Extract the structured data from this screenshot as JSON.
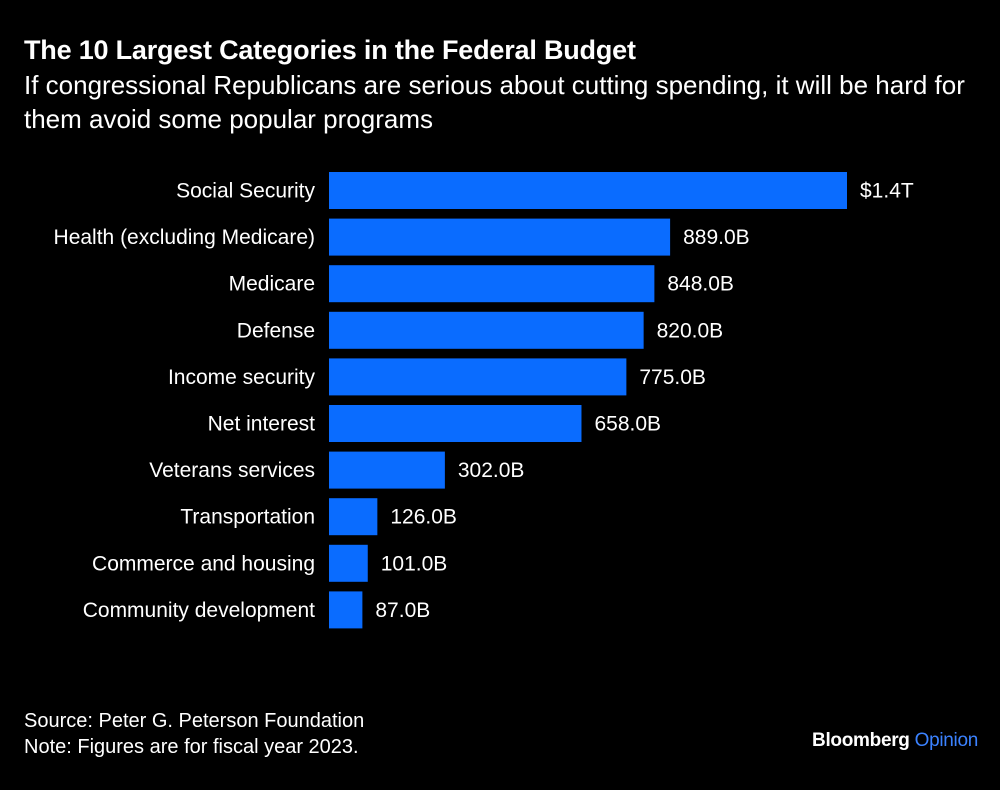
{
  "header": {
    "title": "The 10 Largest Categories in the Federal Budget",
    "subtitle": "If congressional Republicans are serious about cutting spending, it will be hard for them avoid some popular programs"
  },
  "chart_data": {
    "type": "bar",
    "orientation": "horizontal",
    "title": "The 10 Largest Categories in the Federal Budget",
    "xlabel": "",
    "ylabel": "",
    "units": "USD billions",
    "categories": [
      "Social Security",
      "Health (excluding Medicare)",
      "Medicare",
      "Defense",
      "Income security",
      "Net interest",
      "Veterans services",
      "Transportation",
      "Commerce and housing",
      "Community development"
    ],
    "values": [
      1350,
      889,
      848,
      820,
      775,
      658,
      302,
      126,
      101,
      87
    ],
    "data_labels": [
      "$1.4T",
      "889.0B",
      "848.0B",
      "820.0B",
      "775.0B",
      "658.0B",
      "302.0B",
      "126.0B",
      "101.0B",
      "87.0B"
    ],
    "xlim": [
      0,
      1350
    ],
    "grid": false,
    "bar_color": "#0a6cff"
  },
  "footer": {
    "source": "Source: Peter G. Peterson Foundation",
    "note": "Note: Figures are for fiscal year 2023."
  },
  "brand": {
    "name": "Bloomberg",
    "section": "Opinion"
  },
  "colors": {
    "background": "#000000",
    "text": "#ffffff",
    "bar": "#0a6cff",
    "brand_accent": "#3b82ff"
  }
}
